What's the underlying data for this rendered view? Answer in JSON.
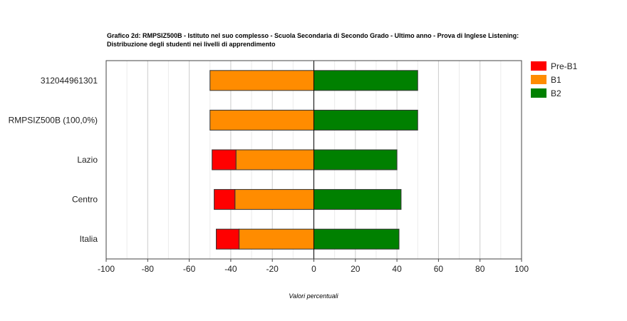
{
  "chart_data": {
    "type": "bar",
    "orientation": "horizontal",
    "stacked": true,
    "title_line1": "Grafico 2d: RMPSIZ500B - Istituto nel suo complesso - Scuola Secondaria di Secondo Grado - Ultimo anno - Prova di Inglese Listening:",
    "title_line2": "Distribuzione degli studenti nei livelli di apprendimento",
    "xlabel": "Valori percentuali",
    "ylabel": "",
    "xlim": [
      -100,
      100
    ],
    "xticks": [
      -100,
      -80,
      -60,
      -40,
      -20,
      0,
      20,
      40,
      60,
      80,
      100
    ],
    "grid": "vertical",
    "legend_position": "right",
    "categories": [
      "312044961301",
      "RMPSIZ500B (100,0%)",
      "Lazio",
      "Centro",
      "Italia"
    ],
    "series": [
      {
        "name": "Pre-B1",
        "color": "#ff0000",
        "values": [
          0,
          0,
          11.5,
          10,
          11
        ]
      },
      {
        "name": "B1",
        "color": "#ff8c00",
        "values": [
          50,
          50,
          37.5,
          38,
          36
        ]
      },
      {
        "name": "B2",
        "color": "#008000",
        "values": [
          50,
          50,
          40,
          42,
          41
        ]
      }
    ]
  }
}
